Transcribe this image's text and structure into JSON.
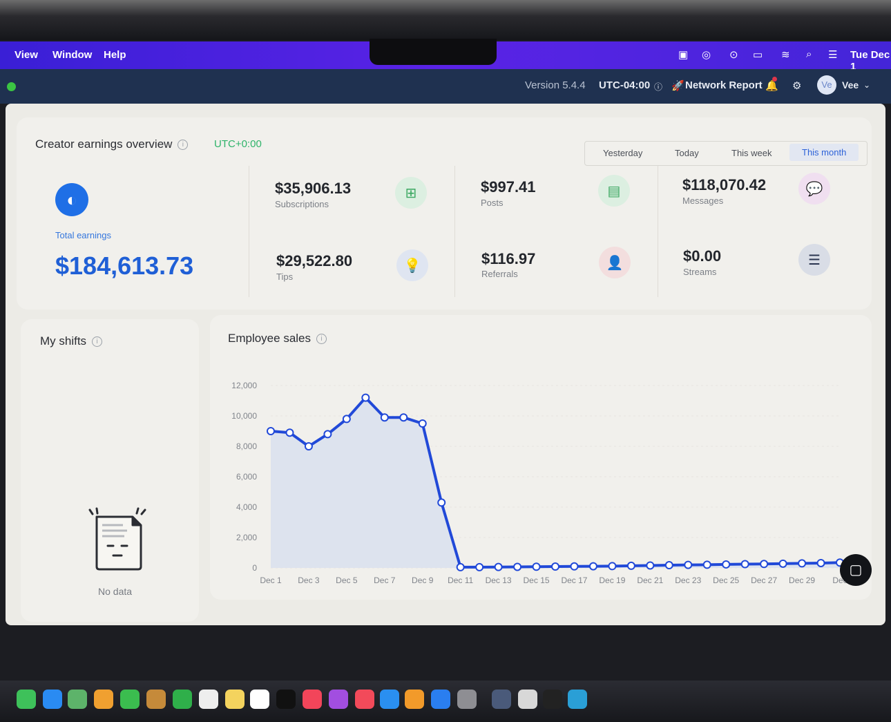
{
  "menubar": {
    "items": [
      "View",
      "Window",
      "Help"
    ],
    "clock": "Tue Dec 1"
  },
  "appbar": {
    "version": "Version 5.4.4",
    "timezone": "UTC-04:00",
    "network_report": "Network Report",
    "user_initials": "Ve",
    "user_name": "Vee"
  },
  "overview": {
    "title": "Creator earnings overview",
    "tz": "UTC+0:00",
    "tabs": [
      "Yesterday",
      "Today",
      "This week",
      "This month"
    ],
    "active_tab": "This month",
    "total_label": "Total earnings",
    "total_value": "$184,613.73",
    "stats": [
      {
        "value": "$35,906.13",
        "label": "Subscriptions",
        "icon": "subscription-icon",
        "color": "#dcefe1"
      },
      {
        "value": "$997.41",
        "label": "Posts",
        "icon": "document-icon",
        "color": "#dcefe1"
      },
      {
        "value": "$118,070.42",
        "label": "Messages",
        "icon": "chat-bubble-icon",
        "color": "#f0dff0"
      },
      {
        "value": "$29,522.80",
        "label": "Tips",
        "icon": "lightbulb-icon",
        "color": "#dfe5f1"
      },
      {
        "value": "$116.97",
        "label": "Referrals",
        "icon": "user-star-icon",
        "color": "#f3dede"
      },
      {
        "value": "$0.00",
        "label": "Streams",
        "icon": "streams-icon",
        "color": "#d9dde6"
      }
    ]
  },
  "shifts": {
    "title": "My shifts",
    "empty_text": "No data"
  },
  "sales": {
    "title": "Employee sales"
  },
  "chart_data": {
    "type": "area",
    "title": "Employee sales",
    "ylim": [
      0,
      12000
    ],
    "yticks": [
      0,
      2000,
      4000,
      6000,
      8000,
      10000,
      12000
    ],
    "ytick_labels": [
      "0",
      "2,000",
      "4,000",
      "6,000",
      "8,000",
      "10,000",
      "12,000"
    ],
    "xtick_labels": [
      "Dec 1",
      "Dec 3",
      "Dec 5",
      "Dec 7",
      "Dec 9",
      "Dec 11",
      "Dec 13",
      "Dec 15",
      "Dec 17",
      "Dec 19",
      "Dec 21",
      "Dec 23",
      "Dec 25",
      "Dec 27",
      "Dec 29",
      "Dec"
    ],
    "x": [
      "Dec 1",
      "Dec 2",
      "Dec 3",
      "Dec 4",
      "Dec 5",
      "Dec 6",
      "Dec 7",
      "Dec 8",
      "Dec 9",
      "Dec 10",
      "Dec 11",
      "Dec 12",
      "Dec 13",
      "Dec 14",
      "Dec 15",
      "Dec 16",
      "Dec 17",
      "Dec 18",
      "Dec 19",
      "Dec 20",
      "Dec 21",
      "Dec 22",
      "Dec 23",
      "Dec 24",
      "Dec 25",
      "Dec 26",
      "Dec 27",
      "Dec 28",
      "Dec 29",
      "Dec 30",
      "Dec 31"
    ],
    "values": [
      9000,
      8900,
      8000,
      8800,
      9800,
      11200,
      9900,
      9900,
      9500,
      4300,
      50,
      50,
      60,
      70,
      80,
      90,
      100,
      110,
      120,
      140,
      160,
      180,
      200,
      210,
      230,
      250,
      260,
      280,
      300,
      320,
      350
    ],
    "color": "#2149d8",
    "fill": "#dde3ee"
  }
}
